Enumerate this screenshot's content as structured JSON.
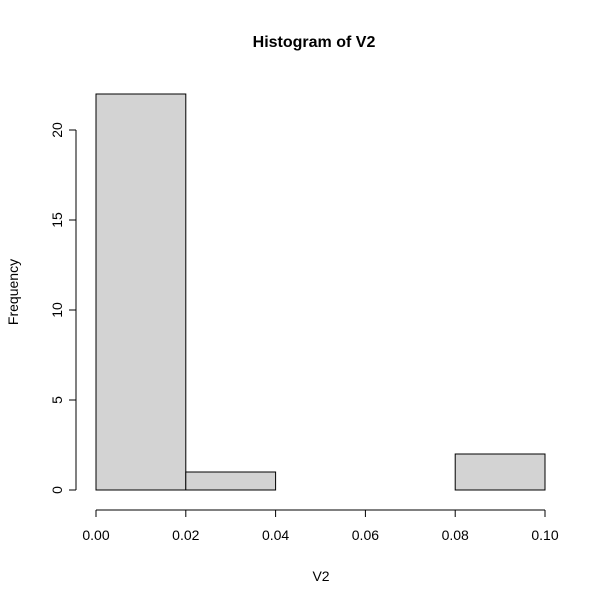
{
  "chart_data": {
    "type": "bar",
    "title": "Histogram of V2",
    "xlabel": "V2",
    "ylabel": "Frequency",
    "bins": [
      {
        "start": 0.0,
        "end": 0.02,
        "count": 22
      },
      {
        "start": 0.02,
        "end": 0.04,
        "count": 1
      },
      {
        "start": 0.04,
        "end": 0.06,
        "count": 0
      },
      {
        "start": 0.06,
        "end": 0.08,
        "count": 0
      },
      {
        "start": 0.08,
        "end": 0.1,
        "count": 2
      }
    ],
    "xlim": [
      0.0,
      0.1
    ],
    "ylim": [
      0,
      22
    ],
    "x_ticks": [
      "0.00",
      "0.02",
      "0.04",
      "0.06",
      "0.08",
      "0.10"
    ],
    "y_ticks": [
      "0",
      "5",
      "10",
      "15",
      "20"
    ],
    "bar_color": "#d3d3d3",
    "grid": false,
    "legend": "none"
  }
}
